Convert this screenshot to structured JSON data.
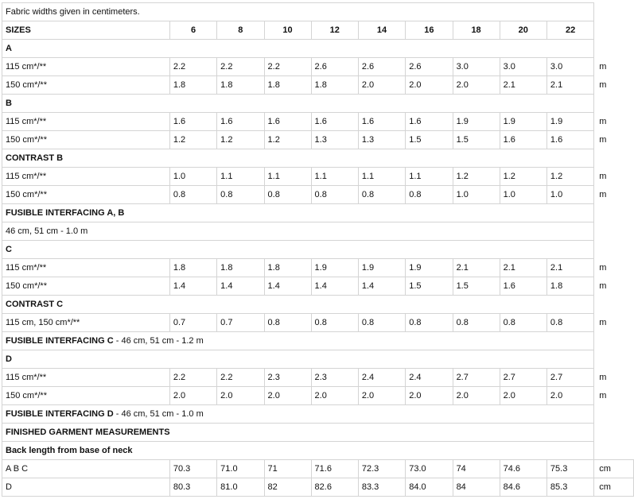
{
  "note": "Fabric widths given in centimeters.",
  "header": {
    "label": "SIZES",
    "sizes": [
      "6",
      "8",
      "10",
      "12",
      "14",
      "16",
      "18",
      "20",
      "22"
    ]
  },
  "rows": [
    {
      "type": "section",
      "label": "A"
    },
    {
      "type": "data",
      "label": "115 cm*/**",
      "values": [
        "2.2",
        "2.2",
        "2.2",
        "2.6",
        "2.6",
        "2.6",
        "3.0",
        "3.0",
        "3.0"
      ],
      "unit": "m"
    },
    {
      "type": "data",
      "label": "150 cm*/**",
      "values": [
        "1.8",
        "1.8",
        "1.8",
        "1.8",
        "2.0",
        "2.0",
        "2.0",
        "2.1",
        "2.1"
      ],
      "unit": "m"
    },
    {
      "type": "section",
      "label": "B"
    },
    {
      "type": "data",
      "label": "115 cm*/**",
      "values": [
        "1.6",
        "1.6",
        "1.6",
        "1.6",
        "1.6",
        "1.6",
        "1.9",
        "1.9",
        "1.9"
      ],
      "unit": "m"
    },
    {
      "type": "data",
      "label": "150 cm*/**",
      "values": [
        "1.2",
        "1.2",
        "1.2",
        "1.3",
        "1.3",
        "1.5",
        "1.5",
        "1.6",
        "1.6"
      ],
      "unit": "m"
    },
    {
      "type": "section",
      "label": "CONTRAST B"
    },
    {
      "type": "data",
      "label": "115 cm*/**",
      "values": [
        "1.0",
        "1.1",
        "1.1",
        "1.1",
        "1.1",
        "1.1",
        "1.2",
        "1.2",
        "1.2"
      ],
      "unit": "m"
    },
    {
      "type": "data",
      "label": "150 cm*/**",
      "values": [
        "0.8",
        "0.8",
        "0.8",
        "0.8",
        "0.8",
        "0.8",
        "1.0",
        "1.0",
        "1.0"
      ],
      "unit": "m"
    },
    {
      "type": "section",
      "label": "FUSIBLE INTERFACING A, B"
    },
    {
      "type": "text",
      "label": "46 cm, 51 cm - 1.0 m"
    },
    {
      "type": "section",
      "label": "C"
    },
    {
      "type": "data",
      "label": "115 cm*/**",
      "values": [
        "1.8",
        "1.8",
        "1.8",
        "1.9",
        "1.9",
        "1.9",
        "2.1",
        "2.1",
        "2.1"
      ],
      "unit": "m"
    },
    {
      "type": "data",
      "label": "150 cm*/**",
      "values": [
        "1.4",
        "1.4",
        "1.4",
        "1.4",
        "1.4",
        "1.5",
        "1.5",
        "1.6",
        "1.8"
      ],
      "unit": "m"
    },
    {
      "type": "section",
      "label": "CONTRAST C"
    },
    {
      "type": "data",
      "label": "115 cm, 150 cm*/**",
      "values": [
        "0.7",
        "0.7",
        "0.8",
        "0.8",
        "0.8",
        "0.8",
        "0.8",
        "0.8",
        "0.8"
      ],
      "unit": "m"
    },
    {
      "type": "mixed",
      "bold": "FUSIBLE INTERFACING C",
      "rest": " - 46 cm, 51 cm - 1.2 m"
    },
    {
      "type": "section",
      "label": "D"
    },
    {
      "type": "data",
      "label": "115 cm*/**",
      "values": [
        "2.2",
        "2.2",
        "2.3",
        "2.3",
        "2.4",
        "2.4",
        "2.7",
        "2.7",
        "2.7"
      ],
      "unit": "m"
    },
    {
      "type": "data",
      "label": "150 cm*/**",
      "values": [
        "2.0",
        "2.0",
        "2.0",
        "2.0",
        "2.0",
        "2.0",
        "2.0",
        "2.0",
        "2.0"
      ],
      "unit": "m"
    },
    {
      "type": "mixed",
      "bold": "FUSIBLE INTERFACING D",
      "rest": " - 46 cm, 51 cm - 1.0 m"
    },
    {
      "type": "section",
      "label": "FINISHED GARMENT MEASUREMENTS"
    },
    {
      "type": "section",
      "label": "Back length from base of neck"
    },
    {
      "type": "data",
      "label": "A B C",
      "values": [
        "70.3",
        "71.0",
        "71",
        "71.6",
        "72.3",
        "73.0",
        "74",
        "74.6",
        "75.3"
      ],
      "unit": "cm",
      "unitBorder": true
    },
    {
      "type": "data",
      "label": "D",
      "values": [
        "80.3",
        "81.0",
        "82",
        "82.6",
        "83.3",
        "84.0",
        "84",
        "84.6",
        "85.3"
      ],
      "unit": "cm",
      "unitBorder": true
    }
  ]
}
